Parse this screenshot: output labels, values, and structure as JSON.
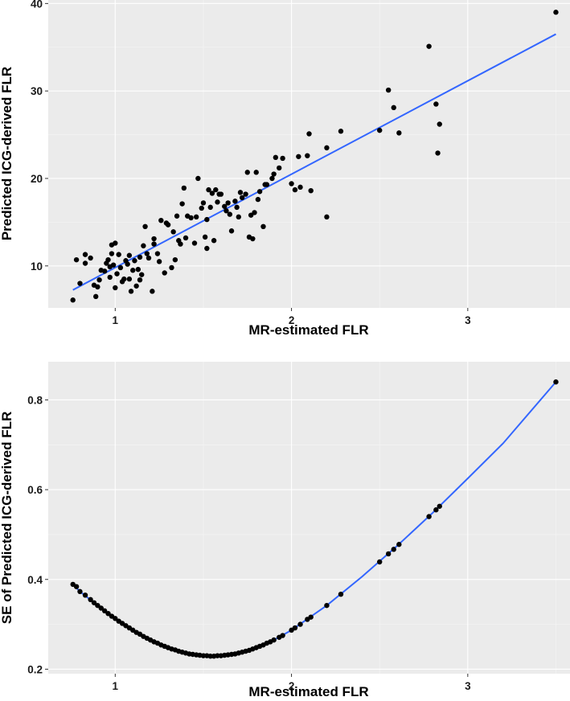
{
  "chart_data": [
    {
      "type": "scatter",
      "title": "",
      "xlabel": "MR-estimated FLR",
      "ylabel": "Predicted ICG-derived FLR",
      "xlim": [
        0.62,
        3.58
      ],
      "ylim": [
        5.2,
        40.4
      ],
      "x_ticks": [
        1,
        2,
        3
      ],
      "y_ticks": [
        10,
        20,
        30,
        40
      ],
      "grid": true,
      "legend": "none",
      "colors": {
        "points": "#000000",
        "fit_line": "#3366ff",
        "panel": "#ebebeb"
      },
      "points": [
        [
          0.76,
          6.1
        ],
        [
          0.78,
          10.7
        ],
        [
          0.8,
          8.0
        ],
        [
          0.83,
          10.3
        ],
        [
          0.83,
          11.3
        ],
        [
          0.86,
          10.9
        ],
        [
          0.88,
          7.8
        ],
        [
          0.89,
          6.5
        ],
        [
          0.9,
          7.6
        ],
        [
          0.91,
          8.4
        ],
        [
          0.92,
          9.5
        ],
        [
          0.94,
          9.4
        ],
        [
          0.95,
          10.3
        ],
        [
          0.96,
          10.7
        ],
        [
          0.97,
          9.9
        ],
        [
          0.97,
          8.7
        ],
        [
          0.98,
          11.4
        ],
        [
          0.98,
          12.4
        ],
        [
          0.99,
          10.1
        ],
        [
          1.0,
          12.6
        ],
        [
          1.0,
          7.5
        ],
        [
          1.01,
          9.1
        ],
        [
          1.02,
          11.3
        ],
        [
          1.03,
          9.8
        ],
        [
          1.04,
          8.2
        ],
        [
          1.05,
          8.5
        ],
        [
          1.06,
          10.6
        ],
        [
          1.07,
          10.2
        ],
        [
          1.08,
          11.2
        ],
        [
          1.08,
          8.5
        ],
        [
          1.09,
          7.1
        ],
        [
          1.1,
          9.5
        ],
        [
          1.11,
          10.6
        ],
        [
          1.12,
          7.7
        ],
        [
          1.13,
          9.6
        ],
        [
          1.14,
          8.4
        ],
        [
          1.14,
          11.0
        ],
        [
          1.15,
          9.0
        ],
        [
          1.16,
          12.3
        ],
        [
          1.17,
          14.5
        ],
        [
          1.18,
          11.4
        ],
        [
          1.19,
          10.9
        ],
        [
          1.21,
          7.1
        ],
        [
          1.22,
          12.5
        ],
        [
          1.22,
          13.1
        ],
        [
          1.24,
          11.4
        ],
        [
          1.25,
          10.5
        ],
        [
          1.26,
          15.2
        ],
        [
          1.28,
          9.2
        ],
        [
          1.29,
          14.9
        ],
        [
          1.3,
          14.7
        ],
        [
          1.32,
          9.8
        ],
        [
          1.33,
          13.9
        ],
        [
          1.34,
          10.7
        ],
        [
          1.35,
          15.7
        ],
        [
          1.36,
          12.9
        ],
        [
          1.37,
          12.5
        ],
        [
          1.38,
          17.1
        ],
        [
          1.39,
          18.9
        ],
        [
          1.4,
          13.2
        ],
        [
          1.41,
          15.7
        ],
        [
          1.43,
          15.5
        ],
        [
          1.45,
          12.6
        ],
        [
          1.46,
          15.6
        ],
        [
          1.47,
          20.0
        ],
        [
          1.49,
          16.6
        ],
        [
          1.5,
          17.2
        ],
        [
          1.51,
          13.3
        ],
        [
          1.52,
          15.3
        ],
        [
          1.52,
          12.0
        ],
        [
          1.53,
          18.7
        ],
        [
          1.54,
          16.7
        ],
        [
          1.55,
          18.3
        ],
        [
          1.56,
          12.9
        ],
        [
          1.57,
          18.7
        ],
        [
          1.58,
          17.3
        ],
        [
          1.59,
          18.2
        ],
        [
          1.6,
          18.2
        ],
        [
          1.62,
          16.8
        ],
        [
          1.63,
          16.3
        ],
        [
          1.64,
          17.2
        ],
        [
          1.65,
          15.9
        ],
        [
          1.66,
          14.0
        ],
        [
          1.68,
          17.4
        ],
        [
          1.69,
          16.7
        ],
        [
          1.7,
          15.6
        ],
        [
          1.71,
          18.4
        ],
        [
          1.72,
          17.8
        ],
        [
          1.74,
          18.2
        ],
        [
          1.75,
          20.7
        ],
        [
          1.76,
          13.3
        ],
        [
          1.77,
          15.8
        ],
        [
          1.78,
          13.1
        ],
        [
          1.79,
          16.1
        ],
        [
          1.8,
          20.7
        ],
        [
          1.81,
          17.6
        ],
        [
          1.82,
          18.5
        ],
        [
          1.84,
          14.5
        ],
        [
          1.85,
          19.3
        ],
        [
          1.86,
          19.3
        ],
        [
          1.89,
          20.0
        ],
        [
          1.9,
          20.5
        ],
        [
          1.91,
          22.4
        ],
        [
          1.93,
          21.2
        ],
        [
          1.95,
          22.3
        ],
        [
          2.0,
          19.4
        ],
        [
          2.02,
          18.7
        ],
        [
          2.04,
          22.5
        ],
        [
          2.05,
          19.0
        ],
        [
          2.09,
          22.6
        ],
        [
          2.1,
          25.1
        ],
        [
          2.11,
          18.6
        ],
        [
          2.2,
          23.5
        ],
        [
          2.2,
          15.6
        ],
        [
          2.28,
          25.4
        ],
        [
          2.5,
          25.5
        ],
        [
          2.55,
          30.1
        ],
        [
          2.58,
          28.1
        ],
        [
          2.61,
          25.2
        ],
        [
          2.78,
          35.1
        ],
        [
          2.82,
          28.5
        ],
        [
          2.83,
          22.9
        ],
        [
          2.84,
          26.2
        ],
        [
          3.5,
          39.0
        ]
      ],
      "fit_line": {
        "x": [
          0.76,
          3.5
        ],
        "y": [
          7.25,
          36.5
        ]
      }
    },
    {
      "type": "scatter",
      "title": "",
      "xlabel": "MR-estimated FLR",
      "ylabel": "SE of Predicted ICG-derived FLR",
      "xlim": [
        0.62,
        3.58
      ],
      "ylim": [
        0.19,
        0.885
      ],
      "x_ticks": [
        1,
        2,
        3
      ],
      "y_ticks": [
        0.2,
        0.4,
        0.6,
        0.8
      ],
      "grid": true,
      "legend": "none",
      "colors": {
        "points": "#000000",
        "fit_line": "#3366ff",
        "panel": "#ebebeb"
      },
      "points": [
        [
          0.76,
          0.389
        ],
        [
          0.78,
          0.384
        ],
        [
          0.8,
          0.373
        ],
        [
          0.83,
          0.365
        ],
        [
          0.86,
          0.355
        ],
        [
          0.88,
          0.348
        ],
        [
          0.9,
          0.342
        ],
        [
          0.92,
          0.336
        ],
        [
          0.94,
          0.33
        ],
        [
          0.96,
          0.324
        ],
        [
          0.98,
          0.318
        ],
        [
          1.0,
          0.313
        ],
        [
          1.02,
          0.307
        ],
        [
          1.04,
          0.302
        ],
        [
          1.06,
          0.297
        ],
        [
          1.08,
          0.292
        ],
        [
          1.1,
          0.287
        ],
        [
          1.12,
          0.282
        ],
        [
          1.14,
          0.278
        ],
        [
          1.16,
          0.273
        ],
        [
          1.18,
          0.269
        ],
        [
          1.2,
          0.265
        ],
        [
          1.22,
          0.261
        ],
        [
          1.24,
          0.258
        ],
        [
          1.26,
          0.254
        ],
        [
          1.28,
          0.251
        ],
        [
          1.3,
          0.248
        ],
        [
          1.32,
          0.245
        ],
        [
          1.34,
          0.243
        ],
        [
          1.36,
          0.24
        ],
        [
          1.38,
          0.238
        ],
        [
          1.4,
          0.236
        ],
        [
          1.42,
          0.234
        ],
        [
          1.44,
          0.233
        ],
        [
          1.46,
          0.232
        ],
        [
          1.48,
          0.231
        ],
        [
          1.5,
          0.23
        ],
        [
          1.52,
          0.23
        ],
        [
          1.54,
          0.229
        ],
        [
          1.56,
          0.229
        ],
        [
          1.58,
          0.23
        ],
        [
          1.6,
          0.23
        ],
        [
          1.62,
          0.231
        ],
        [
          1.64,
          0.232
        ],
        [
          1.66,
          0.233
        ],
        [
          1.68,
          0.234
        ],
        [
          1.7,
          0.236
        ],
        [
          1.72,
          0.238
        ],
        [
          1.74,
          0.24
        ],
        [
          1.76,
          0.242
        ],
        [
          1.78,
          0.245
        ],
        [
          1.8,
          0.248
        ],
        [
          1.82,
          0.251
        ],
        [
          1.84,
          0.254
        ],
        [
          1.86,
          0.258
        ],
        [
          1.88,
          0.261
        ],
        [
          1.9,
          0.265
        ],
        [
          1.93,
          0.271
        ],
        [
          1.95,
          0.275
        ],
        [
          2.0,
          0.287
        ],
        [
          2.02,
          0.292
        ],
        [
          2.05,
          0.3
        ],
        [
          2.09,
          0.311
        ],
        [
          2.11,
          0.316
        ],
        [
          2.2,
          0.342
        ],
        [
          2.28,
          0.367
        ],
        [
          2.5,
          0.439
        ],
        [
          2.55,
          0.457
        ],
        [
          2.58,
          0.467
        ],
        [
          2.61,
          0.478
        ],
        [
          2.78,
          0.54
        ],
        [
          2.82,
          0.555
        ],
        [
          2.84,
          0.563
        ],
        [
          3.5,
          0.84
        ]
      ],
      "fit_curve": {
        "x": [
          0.76,
          0.8,
          0.9,
          1.0,
          1.1,
          1.2,
          1.3,
          1.4,
          1.5,
          1.55,
          1.6,
          1.7,
          1.8,
          1.9,
          2.0,
          2.2,
          2.4,
          2.6,
          2.8,
          3.0,
          3.2,
          3.5
        ],
        "y": [
          0.389,
          0.373,
          0.342,
          0.313,
          0.287,
          0.265,
          0.248,
          0.236,
          0.23,
          0.229,
          0.23,
          0.236,
          0.248,
          0.265,
          0.287,
          0.342,
          0.406,
          0.475,
          0.548,
          0.625,
          0.703,
          0.84
        ]
      }
    }
  ]
}
